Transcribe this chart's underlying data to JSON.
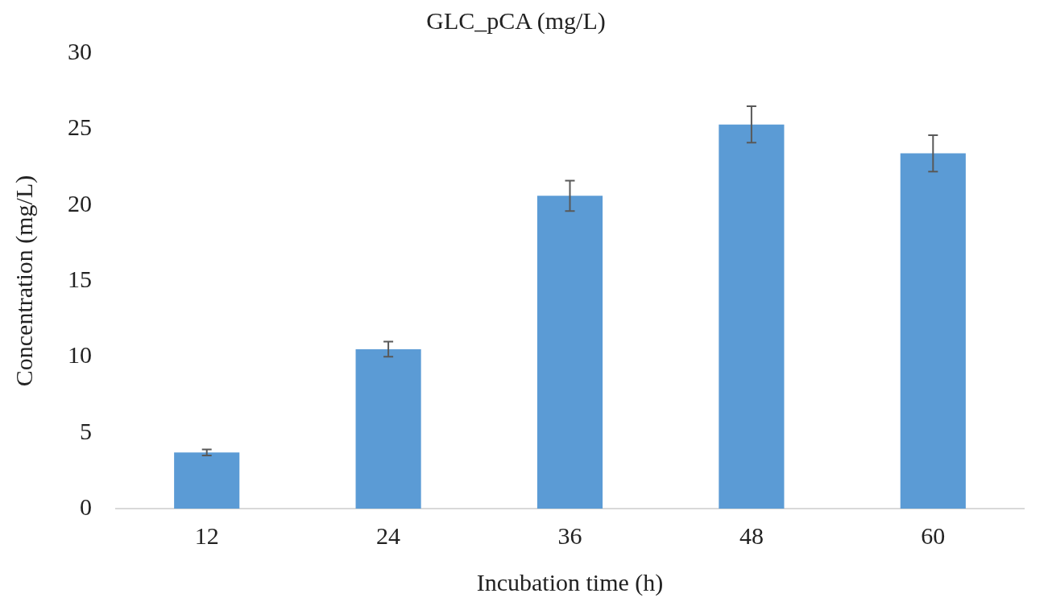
{
  "chart_data": {
    "type": "bar",
    "title": "GLC_pCA (mg/L)",
    "xlabel": "Incubation time (h)",
    "ylabel": "Concentration (mg/L)",
    "categories": [
      "12",
      "24",
      "36",
      "48",
      "60"
    ],
    "values": [
      3.7,
      10.5,
      20.6,
      25.3,
      23.4
    ],
    "errors": [
      0.2,
      0.5,
      1.0,
      1.2,
      1.2
    ],
    "color": "#5b9bd5",
    "ylim": [
      0,
      30
    ],
    "yticks": [
      0,
      5,
      10,
      15,
      20,
      25,
      30
    ],
    "grid": false,
    "legend": false
  }
}
